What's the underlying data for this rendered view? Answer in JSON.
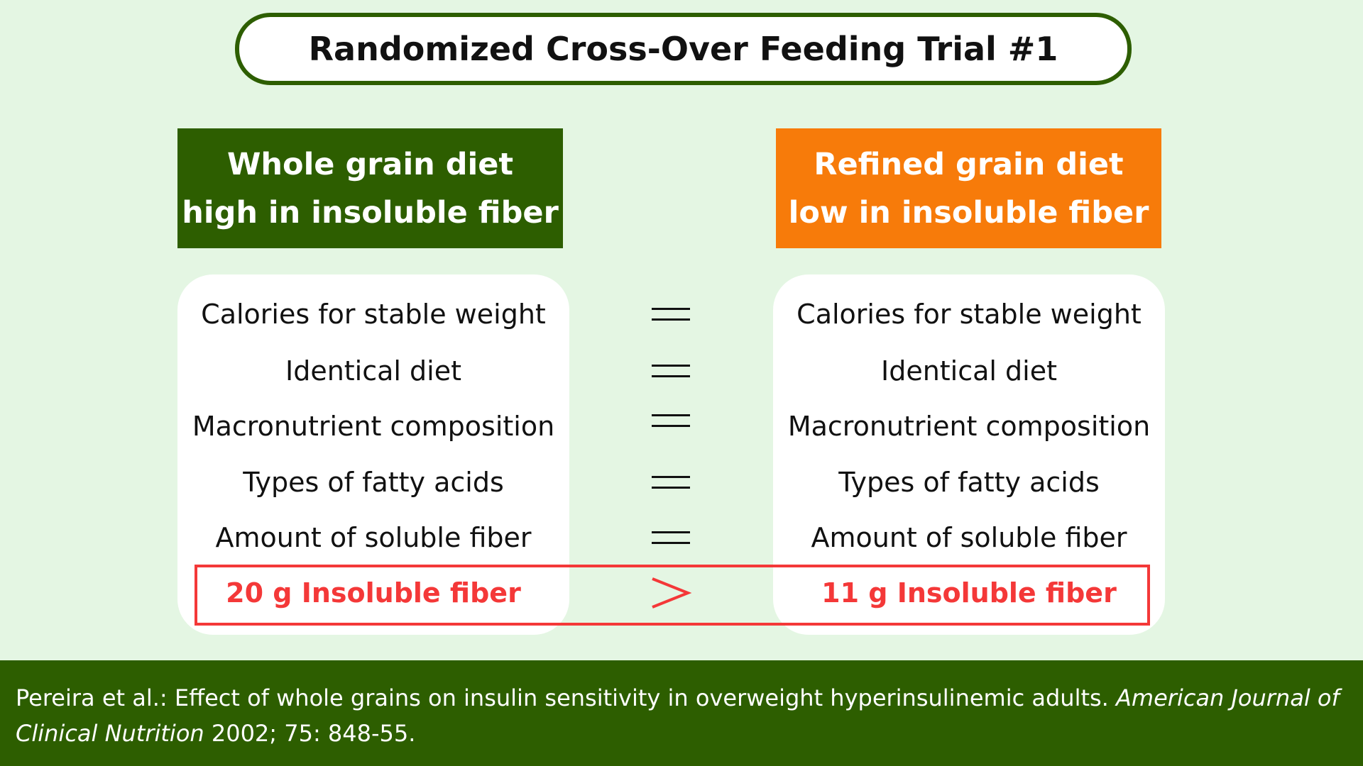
{
  "title": "Randomized Cross-Over Feeding Trial #1",
  "left_header": {
    "line1": "Whole grain diet",
    "line2": "high in insoluble fiber",
    "color": "#2d5e00"
  },
  "right_header": {
    "line1": "Refined grain diet",
    "line2": "low in insoluble fiber",
    "color": "#f77b0a"
  },
  "rows": [
    {
      "left": "Calories for stable weight",
      "symbol": "=",
      "right": "Calories for stable weight"
    },
    {
      "left": "Identical diet",
      "symbol": "=",
      "right": "Identical diet"
    },
    {
      "left": "Macronutrient composition",
      "symbol": "=",
      "right": "Macronutrient composition"
    },
    {
      "left": "Types of fatty acids",
      "symbol": "=",
      "right": "Types of fatty acids"
    },
    {
      "left": "Amount of soluble fiber",
      "symbol": "=",
      "right": "Amount of soluble fiber"
    },
    {
      "left": "20 g Insoluble fiber",
      "symbol": ">",
      "right": "11 g Insoluble fiber",
      "highlight_color": "#f43838"
    }
  ],
  "footer": {
    "text": "Pereira et al.:  Effect of whole grains on insulin sensitivity in overweight hyperinsulinemic adults. ",
    "journal": "American Journal of Clinical Nutrition",
    "citation": " 2002; 75: 848-55."
  }
}
